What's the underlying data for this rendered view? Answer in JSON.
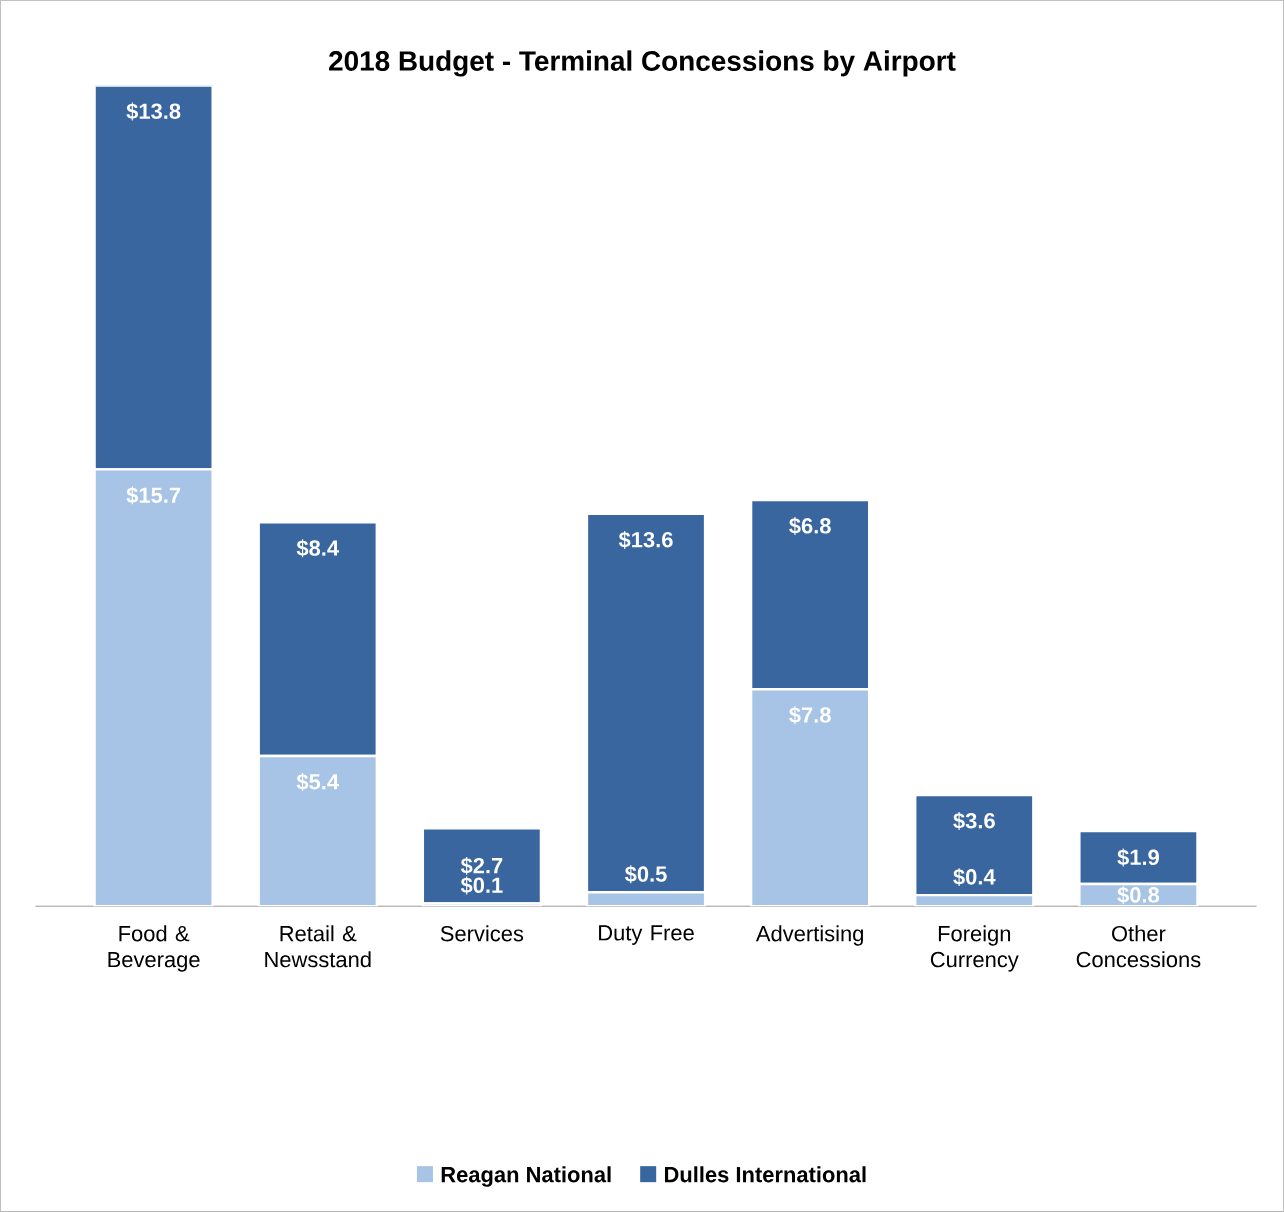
{
  "chart_data": {
    "type": "bar",
    "title": "2018 Budget - Terminal Concessions by Airport",
    "categories": [
      "Food & Beverage",
      "Retail & Newsstand",
      "Services",
      "Duty Free",
      "Advertising",
      "Foreign Currency",
      "Other Concessions"
    ],
    "stacked": true,
    "legend": "bottom",
    "series": [
      {
        "name": "Reagan National",
        "color": "#a7c3e6",
        "values": [
          15.7,
          5.4,
          0.1,
          0.5,
          7.8,
          0.4,
          0.8
        ],
        "value_labels": [
          "$15.7",
          "$5.4",
          "$0.1",
          "$0.5",
          "$7.8",
          "$0.4",
          "$0.8"
        ]
      },
      {
        "name": "Dulles International",
        "color": "#3a66a0",
        "values": [
          13.8,
          8.4,
          2.7,
          13.6,
          6.8,
          3.6,
          1.9
        ],
        "value_labels": [
          "$13.8",
          "$8.4",
          "$2.7",
          "$13.6",
          "$6.8",
          "$3.6",
          "$1.9"
        ]
      }
    ]
  }
}
